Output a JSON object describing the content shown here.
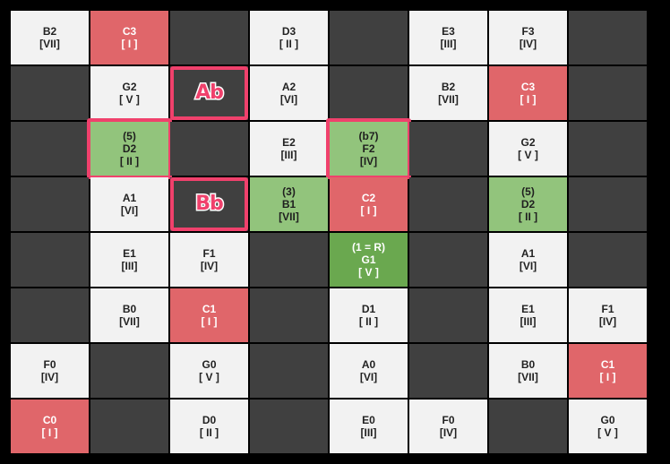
{
  "colors": {
    "empty": "#404040",
    "white": "#f2f2f2",
    "root_red": "#e0666a",
    "chord_green": "#92c47c",
    "root_green": "#6aa84f",
    "highlight_pink": "#f0416c"
  },
  "grid": {
    "rows": [
      [
        {
          "type": "white",
          "lines": [
            "B2",
            "[VII]"
          ]
        },
        {
          "type": "red",
          "lines": [
            "C3",
            "[ I ]"
          ]
        },
        {
          "type": "empty",
          "lines": []
        },
        {
          "type": "white",
          "lines": [
            "D3",
            "[ II ]"
          ]
        },
        {
          "type": "empty",
          "lines": []
        },
        {
          "type": "white",
          "lines": [
            "E3",
            "[III]"
          ]
        },
        {
          "type": "white",
          "lines": [
            "F3",
            "[IV]"
          ]
        },
        {
          "type": "empty",
          "lines": []
        }
      ],
      [
        {
          "type": "empty",
          "lines": []
        },
        {
          "type": "white",
          "lines": [
            "G2",
            "[ V ]"
          ]
        },
        {
          "type": "empty",
          "lines": [],
          "label": "Ab",
          "box": "inner"
        },
        {
          "type": "white",
          "lines": [
            "A2",
            "[VI]"
          ]
        },
        {
          "type": "empty",
          "lines": []
        },
        {
          "type": "white",
          "lines": [
            "B2",
            "[VII]"
          ]
        },
        {
          "type": "red",
          "lines": [
            "C3",
            "[ I ]"
          ]
        },
        {
          "type": "empty",
          "lines": []
        }
      ],
      [
        {
          "type": "empty",
          "lines": []
        },
        {
          "type": "green",
          "lines": [
            "(5)",
            "D2",
            "[ II ]"
          ],
          "box": "ext"
        },
        {
          "type": "empty",
          "lines": []
        },
        {
          "type": "white",
          "lines": [
            "E2",
            "[III]"
          ]
        },
        {
          "type": "green",
          "lines": [
            "(b7)",
            "F2",
            "[IV]"
          ],
          "box": "ext"
        },
        {
          "type": "empty",
          "lines": []
        },
        {
          "type": "white",
          "lines": [
            "G2",
            "[ V ]"
          ]
        },
        {
          "type": "empty",
          "lines": []
        }
      ],
      [
        {
          "type": "empty",
          "lines": []
        },
        {
          "type": "white",
          "lines": [
            "A1",
            "[VI]"
          ]
        },
        {
          "type": "empty",
          "lines": [],
          "label": "Bb",
          "box": "inner"
        },
        {
          "type": "green",
          "lines": [
            "(3)",
            "B1",
            "[VII]"
          ]
        },
        {
          "type": "red",
          "lines": [
            "C2",
            "[ I ]"
          ]
        },
        {
          "type": "empty",
          "lines": []
        },
        {
          "type": "green",
          "lines": [
            "(5)",
            "D2",
            "[ II ]"
          ]
        },
        {
          "type": "empty",
          "lines": []
        }
      ],
      [
        {
          "type": "empty",
          "lines": []
        },
        {
          "type": "white",
          "lines": [
            "E1",
            "[III]"
          ]
        },
        {
          "type": "white",
          "lines": [
            "F1",
            "[IV]"
          ]
        },
        {
          "type": "empty",
          "lines": []
        },
        {
          "type": "dgreen",
          "lines": [
            "(1 = R)",
            "G1",
            "[ V ]"
          ]
        },
        {
          "type": "empty",
          "lines": []
        },
        {
          "type": "white",
          "lines": [
            "A1",
            "[VI]"
          ]
        },
        {
          "type": "empty",
          "lines": []
        }
      ],
      [
        {
          "type": "empty",
          "lines": []
        },
        {
          "type": "white",
          "lines": [
            "B0",
            "[VII]"
          ]
        },
        {
          "type": "red",
          "lines": [
            "C1",
            "[ I ]"
          ]
        },
        {
          "type": "empty",
          "lines": []
        },
        {
          "type": "white",
          "lines": [
            "D1",
            "[ II ]"
          ]
        },
        {
          "type": "empty",
          "lines": []
        },
        {
          "type": "white",
          "lines": [
            "E1",
            "[III]"
          ]
        },
        {
          "type": "white",
          "lines": [
            "F1",
            "[IV]"
          ]
        }
      ],
      [
        {
          "type": "white",
          "lines": [
            "F0",
            "[IV]"
          ]
        },
        {
          "type": "empty",
          "lines": []
        },
        {
          "type": "white",
          "lines": [
            "G0",
            "[ V ]"
          ]
        },
        {
          "type": "empty",
          "lines": []
        },
        {
          "type": "white",
          "lines": [
            "A0",
            "[VI]"
          ]
        },
        {
          "type": "empty",
          "lines": []
        },
        {
          "type": "white",
          "lines": [
            "B0",
            "[VII]"
          ]
        },
        {
          "type": "red",
          "lines": [
            "C1",
            "[ I ]"
          ]
        }
      ],
      [
        {
          "type": "red",
          "lines": [
            "C0",
            "[ I ]"
          ]
        },
        {
          "type": "empty",
          "lines": []
        },
        {
          "type": "white",
          "lines": [
            "D0",
            "[ II ]"
          ]
        },
        {
          "type": "empty",
          "lines": []
        },
        {
          "type": "white",
          "lines": [
            "E0",
            "[III]"
          ]
        },
        {
          "type": "white",
          "lines": [
            "F0",
            "[IV]"
          ]
        },
        {
          "type": "empty",
          "lines": []
        },
        {
          "type": "white",
          "lines": [
            "G0",
            "[ V ]"
          ]
        }
      ]
    ]
  }
}
